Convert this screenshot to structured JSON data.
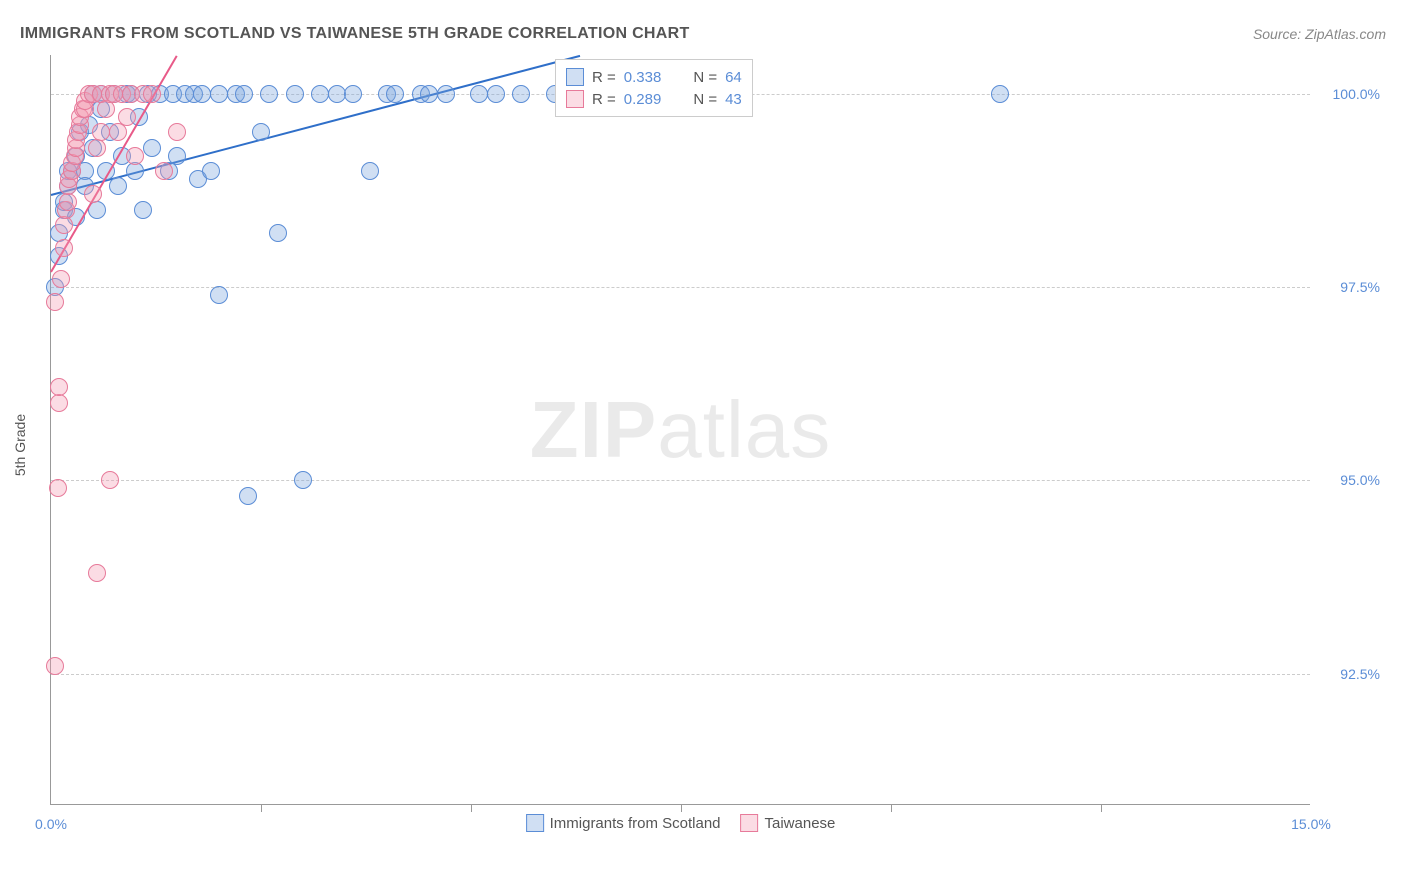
{
  "title": "IMMIGRANTS FROM SCOTLAND VS TAIWANESE 5TH GRADE CORRELATION CHART",
  "source": "Source: ZipAtlas.com",
  "y_axis_label": "5th Grade",
  "watermark_bold": "ZIP",
  "watermark_light": "atlas",
  "chart": {
    "type": "scatter",
    "xlim": [
      0.0,
      15.0
    ],
    "ylim": [
      90.8,
      100.5
    ],
    "x_ticks": [
      0.0,
      15.0
    ],
    "x_tick_labels": [
      "0.0%",
      "15.0%"
    ],
    "x_minor_ticks": [
      2.5,
      5.0,
      7.5,
      10.0,
      12.5
    ],
    "y_ticks": [
      92.5,
      95.0,
      97.5,
      100.0
    ],
    "y_tick_labels": [
      "92.5%",
      "95.0%",
      "97.5%",
      "100.0%"
    ],
    "background_color": "#ffffff",
    "grid_color": "#cccccc",
    "point_radius": 9,
    "series": [
      {
        "label": "Immigrants from Scotland",
        "fill_color": "rgba(121,163,220,0.35)",
        "stroke_color": "#5b8dd6",
        "line_color": "#2f6fc9",
        "r_value": "0.338",
        "n_value": "64",
        "regression": {
          "x1": 0.0,
          "y1": 98.7,
          "x2": 6.3,
          "y2": 100.5
        },
        "points": [
          [
            0.05,
            97.5
          ],
          [
            0.1,
            97.9
          ],
          [
            0.1,
            98.2
          ],
          [
            0.15,
            98.5
          ],
          [
            0.15,
            98.6
          ],
          [
            0.2,
            98.8
          ],
          [
            0.2,
            99.0
          ],
          [
            0.25,
            99.0
          ],
          [
            0.3,
            98.4
          ],
          [
            0.3,
            99.2
          ],
          [
            0.35,
            99.5
          ],
          [
            0.4,
            99.0
          ],
          [
            0.4,
            98.8
          ],
          [
            0.45,
            99.6
          ],
          [
            0.5,
            100.0
          ],
          [
            0.5,
            99.3
          ],
          [
            0.55,
            98.5
          ],
          [
            0.6,
            99.8
          ],
          [
            0.6,
            100.0
          ],
          [
            0.65,
            99.0
          ],
          [
            0.7,
            99.5
          ],
          [
            0.75,
            100.0
          ],
          [
            0.8,
            98.8
          ],
          [
            0.85,
            99.2
          ],
          [
            0.9,
            100.0
          ],
          [
            0.95,
            100.0
          ],
          [
            1.0,
            99.0
          ],
          [
            1.05,
            99.7
          ],
          [
            1.1,
            98.5
          ],
          [
            1.15,
            100.0
          ],
          [
            1.2,
            99.3
          ],
          [
            1.3,
            100.0
          ],
          [
            1.4,
            99.0
          ],
          [
            1.45,
            100.0
          ],
          [
            1.5,
            99.2
          ],
          [
            1.6,
            100.0
          ],
          [
            1.7,
            100.0
          ],
          [
            1.75,
            98.9
          ],
          [
            1.8,
            100.0
          ],
          [
            1.9,
            99.0
          ],
          [
            2.0,
            97.4
          ],
          [
            2.0,
            100.0
          ],
          [
            2.2,
            100.0
          ],
          [
            2.3,
            100.0
          ],
          [
            2.35,
            94.8
          ],
          [
            2.5,
            99.5
          ],
          [
            2.6,
            100.0
          ],
          [
            2.7,
            98.2
          ],
          [
            2.9,
            100.0
          ],
          [
            3.0,
            95.0
          ],
          [
            3.2,
            100.0
          ],
          [
            3.4,
            100.0
          ],
          [
            3.6,
            100.0
          ],
          [
            3.8,
            99.0
          ],
          [
            4.0,
            100.0
          ],
          [
            4.1,
            100.0
          ],
          [
            4.4,
            100.0
          ],
          [
            4.5,
            100.0
          ],
          [
            4.7,
            100.0
          ],
          [
            5.1,
            100.0
          ],
          [
            5.3,
            100.0
          ],
          [
            5.6,
            100.0
          ],
          [
            6.0,
            100.0
          ],
          [
            11.3,
            100.0
          ]
        ]
      },
      {
        "label": "Taiwanese",
        "fill_color": "rgba(244,154,178,0.35)",
        "stroke_color": "#e77a9a",
        "line_color": "#e85a88",
        "r_value": "0.289",
        "n_value": "43",
        "regression": {
          "x1": 0.0,
          "y1": 97.7,
          "x2": 1.5,
          "y2": 100.5
        },
        "points": [
          [
            0.05,
            92.6
          ],
          [
            0.05,
            97.3
          ],
          [
            0.08,
            94.9
          ],
          [
            0.1,
            96.0
          ],
          [
            0.1,
            96.2
          ],
          [
            0.12,
            97.6
          ],
          [
            0.15,
            98.0
          ],
          [
            0.15,
            98.3
          ],
          [
            0.18,
            98.5
          ],
          [
            0.2,
            98.6
          ],
          [
            0.2,
            98.8
          ],
          [
            0.22,
            98.9
          ],
          [
            0.25,
            99.0
          ],
          [
            0.25,
            99.1
          ],
          [
            0.28,
            99.2
          ],
          [
            0.3,
            99.3
          ],
          [
            0.3,
            99.4
          ],
          [
            0.32,
            99.5
          ],
          [
            0.35,
            99.6
          ],
          [
            0.35,
            99.7
          ],
          [
            0.38,
            99.8
          ],
          [
            0.4,
            99.8
          ],
          [
            0.4,
            99.9
          ],
          [
            0.45,
            100.0
          ],
          [
            0.5,
            100.0
          ],
          [
            0.5,
            98.7
          ],
          [
            0.55,
            99.3
          ],
          [
            0.6,
            99.5
          ],
          [
            0.6,
            100.0
          ],
          [
            0.65,
            99.8
          ],
          [
            0.7,
            100.0
          ],
          [
            0.7,
            95.0
          ],
          [
            0.75,
            100.0
          ],
          [
            0.55,
            93.8
          ],
          [
            0.8,
            99.5
          ],
          [
            0.85,
            100.0
          ],
          [
            0.9,
            99.7
          ],
          [
            0.95,
            100.0
          ],
          [
            1.0,
            99.2
          ],
          [
            1.1,
            100.0
          ],
          [
            1.2,
            100.0
          ],
          [
            1.35,
            99.0
          ],
          [
            1.5,
            99.5
          ]
        ]
      }
    ]
  },
  "legend_top": {
    "rows": [
      {
        "swatch_fill": "rgba(121,163,220,0.35)",
        "swatch_border": "#5b8dd6",
        "r_label": "R =",
        "r_val": "0.338",
        "n_label": "N =",
        "n_val": "64"
      },
      {
        "swatch_fill": "rgba(244,154,178,0.35)",
        "swatch_border": "#e77a9a",
        "r_label": "R =",
        "r_val": "0.289",
        "n_label": "N =",
        "n_val": "43"
      }
    ]
  },
  "legend_bottom": {
    "items": [
      {
        "swatch_fill": "rgba(121,163,220,0.35)",
        "swatch_border": "#5b8dd6",
        "label": "Immigrants from Scotland"
      },
      {
        "swatch_fill": "rgba(244,154,178,0.35)",
        "swatch_border": "#e77a9a",
        "label": "Taiwanese"
      }
    ]
  }
}
